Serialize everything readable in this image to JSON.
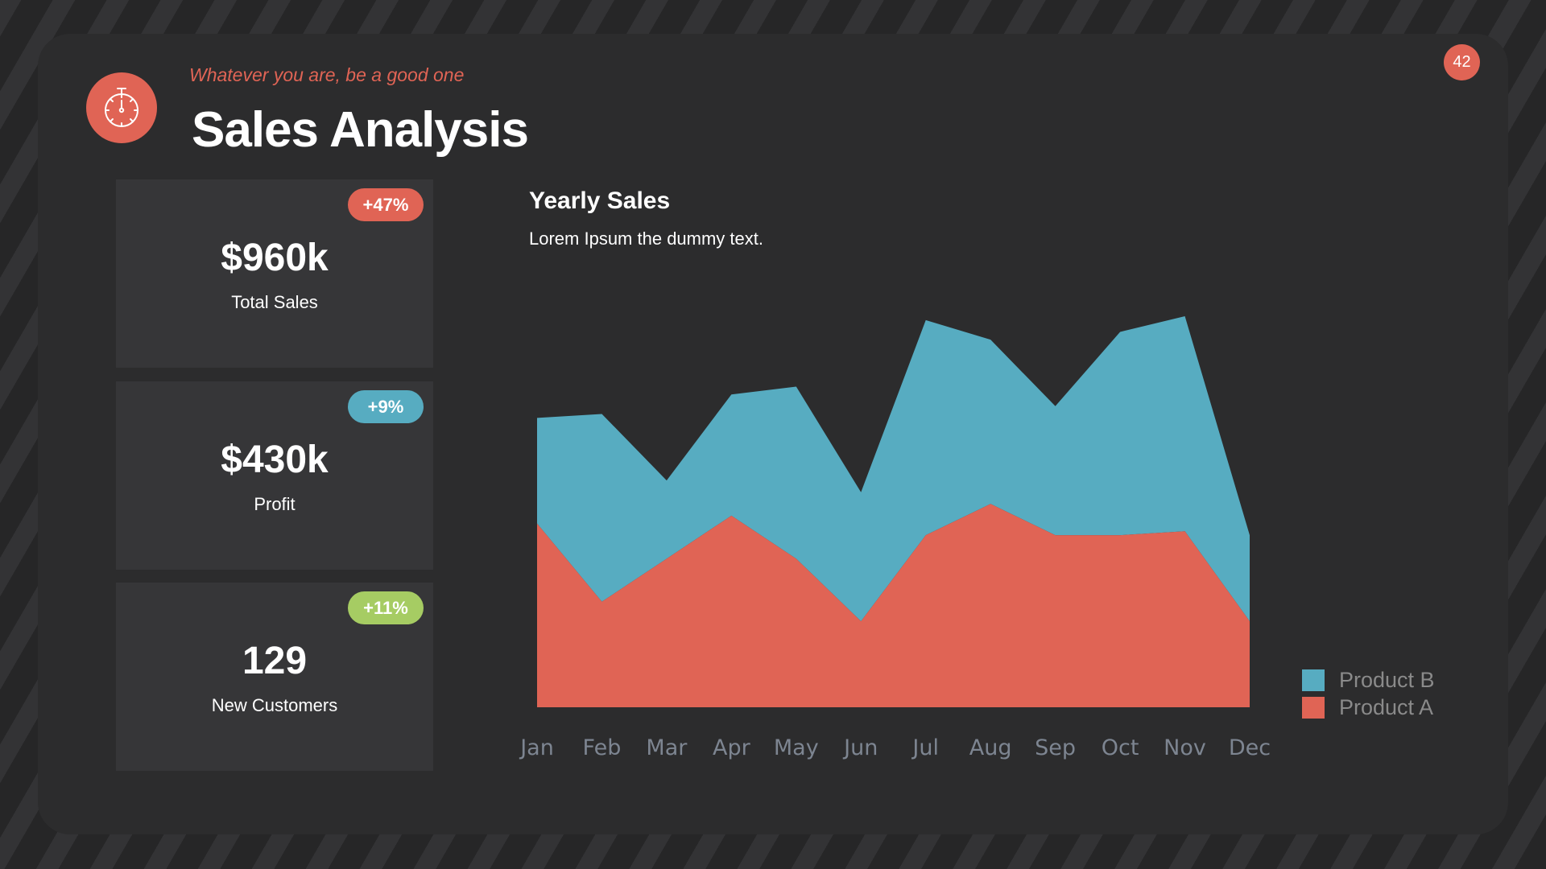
{
  "slide": {
    "number": "42",
    "subtitle": "Whatever you are, be a good one",
    "title": "Sales Analysis",
    "icon": "stopwatch-icon"
  },
  "colors": {
    "accent_red": "#e06455",
    "accent_blue": "#57acc1",
    "accent_green": "#a6cc63",
    "panel": "#2c2c2d",
    "card": "#363638"
  },
  "kpis": [
    {
      "value": "$960k",
      "label": "Total Sales",
      "change": "+47%",
      "badge_color": "#e06455"
    },
    {
      "value": "$430k",
      "label": "Profit",
      "change": "+9%",
      "badge_color": "#57acc1"
    },
    {
      "value": "129",
      "label": "New Customers",
      "change": "+11%",
      "badge_color": "#a6cc63"
    }
  ],
  "chart": {
    "title": "Yearly Sales",
    "subtitle": "Lorem Ipsum the dummy text."
  },
  "chart_data": {
    "type": "area",
    "stacked": true,
    "title": "Yearly Sales",
    "subtitle": "Lorem Ipsum the dummy text.",
    "xlabel": "",
    "ylabel": "",
    "ylim": [
      0,
      100
    ],
    "grid": false,
    "legend_position": "right-bottom",
    "categories": [
      "Jan",
      "Feb",
      "Mar",
      "Apr",
      "May",
      "Jun",
      "Jul",
      "Aug",
      "Sep",
      "Oct",
      "Nov",
      "Dec"
    ],
    "series": [
      {
        "name": "Product A",
        "color": "#e06455",
        "values": [
          47,
          27,
          38,
          49,
          38,
          22,
          44,
          52,
          44,
          44,
          45,
          22
        ]
      },
      {
        "name": "Product B",
        "color": "#57acc1",
        "values": [
          27,
          48,
          20,
          31,
          44,
          33,
          55,
          42,
          33,
          52,
          55,
          22
        ]
      }
    ],
    "legend": [
      "Product B",
      "Product A"
    ]
  }
}
